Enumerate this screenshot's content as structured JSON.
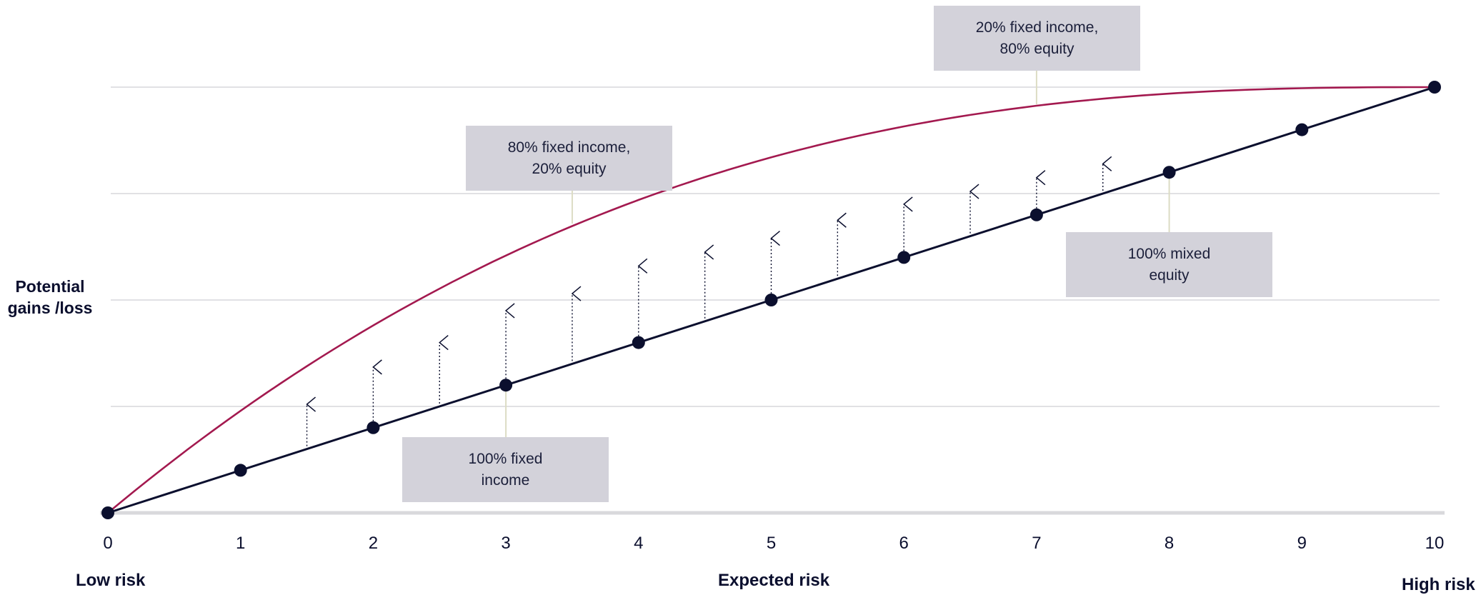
{
  "chart_data": {
    "type": "line",
    "ylabel": "Potential\ngains /loss",
    "xlabel": "Expected risk",
    "x_end_labels": {
      "left": "Low risk",
      "right": "High risk"
    },
    "xlim": [
      0,
      10
    ],
    "ylim": [
      0,
      4
    ],
    "grid": "horizontal",
    "x_ticks": [
      "0",
      "1",
      "2",
      "3",
      "4",
      "5",
      "6",
      "7",
      "8",
      "9",
      "10"
    ],
    "y_gridlines": [
      1,
      2,
      3,
      4
    ],
    "series": [
      {
        "color": "#0b0f2e",
        "marker": "circle",
        "x": [
          0,
          1,
          2,
          3,
          4,
          5,
          6,
          7,
          8,
          9,
          10
        ],
        "y": [
          0,
          0.4,
          0.8,
          1.2,
          1.6,
          2.0,
          2.4,
          2.8,
          3.2,
          3.6,
          4.0
        ]
      },
      {
        "color": "#a3194f",
        "marker": "none",
        "curve": "concave",
        "x": [
          0,
          1,
          2,
          3,
          4,
          5,
          6,
          7,
          8,
          9,
          10
        ],
        "y": [
          0,
          0.97,
          1.72,
          2.32,
          2.83,
          3.24,
          3.55,
          3.78,
          3.91,
          3.98,
          4.0
        ]
      }
    ],
    "arrows": {
      "x": [
        1.5,
        2,
        2.5,
        3,
        3.5,
        4,
        4.5,
        5,
        5.5,
        6,
        6.5,
        7,
        7.5
      ],
      "dy": [
        0.42,
        0.57,
        0.6,
        0.7,
        0.66,
        0.72,
        0.65,
        0.58,
        0.55,
        0.5,
        0.42,
        0.35,
        0.28
      ]
    },
    "annotations": [
      {
        "text": "100% fixed\nincome",
        "x": 3,
        "y": 1.2,
        "position": "below"
      },
      {
        "text": "80% fixed income,\n20% equity",
        "x": 3.5,
        "y": 2.72,
        "position": "above"
      },
      {
        "text": "20% fixed income,\n80% equity",
        "x": 7,
        "y": 3.83,
        "position": "above"
      },
      {
        "text": "100% mixed\nequity",
        "x": 8,
        "y": 3.2,
        "position": "below"
      }
    ],
    "colors": {
      "line": "#0b0f2e",
      "curve": "#a3194f",
      "grid": "#e1e1e4",
      "callout": "#d3d2da",
      "leader": "#dcdcc4"
    }
  }
}
